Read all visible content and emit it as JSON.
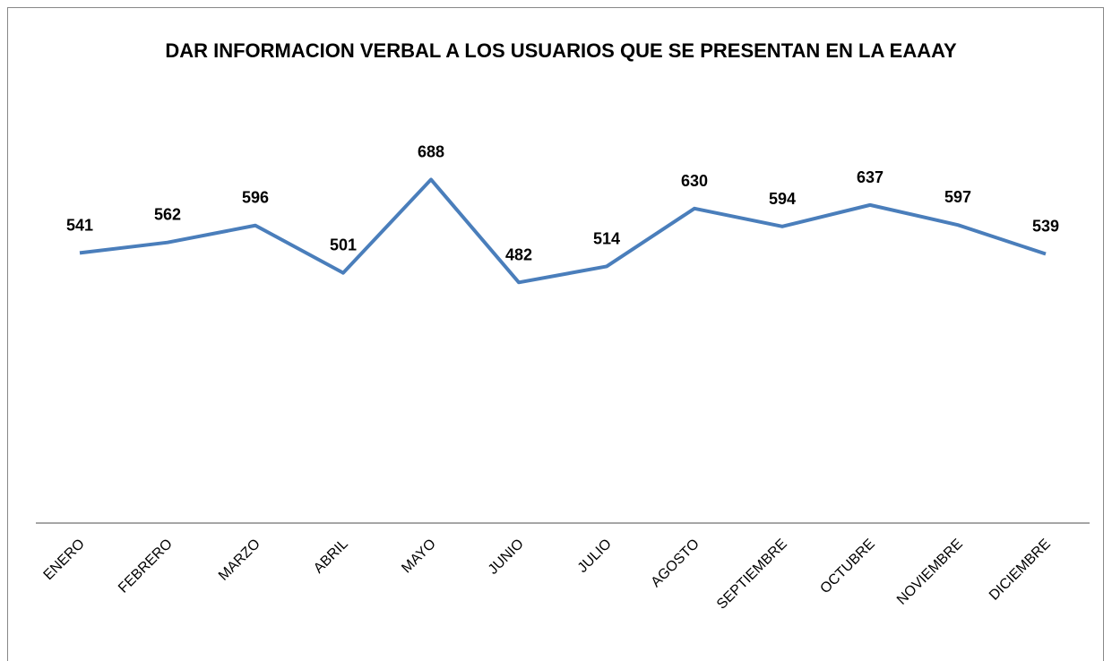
{
  "chart_data": {
    "type": "line",
    "title": "DAR INFORMACION VERBAL A LOS USUARIOS QUE SE PRESENTAN EN LA EAAAY",
    "categories": [
      "ENERO",
      "FEBRERO",
      "MARZO",
      "ABRIL",
      "MAYO",
      "JUNIO",
      "JULIO",
      "AGOSTO",
      "SEPTIEMBRE",
      "OCTUBRE",
      "NOVIEMBRE",
      "DICIEMBRE"
    ],
    "values": [
      541,
      562,
      596,
      501,
      688,
      482,
      514,
      630,
      594,
      637,
      597,
      539
    ],
    "color": "#4a7ebb",
    "ylim": [
      0,
      800
    ]
  }
}
